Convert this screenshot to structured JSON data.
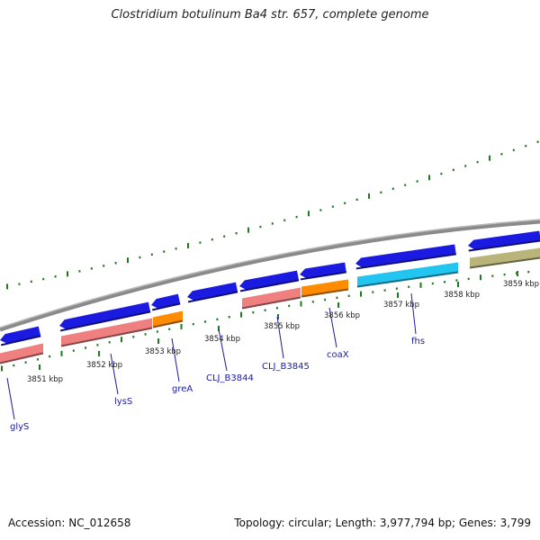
{
  "title": "Clostridium botulinum Ba4 str. 657, complete genome",
  "footer": {
    "accession": "Accession: NC_012658",
    "topology": "Topology: circular; Length: 3,977,794 bp; Genes: 3,799"
  },
  "colors": {
    "backbone": "#8a8a8a",
    "tick": "#1f7a1f",
    "cds_forward": "#1a1ae0",
    "cds_salmon": "#f08080",
    "cds_orange": "#ff8c00",
    "cds_cyan": "#22c4f0",
    "cds_olive": "#b8b47a",
    "label": "#1a1aa6"
  },
  "ticks": [
    {
      "label": "3851 kbp"
    },
    {
      "label": "3852 kbp"
    },
    {
      "label": "3853 kbp"
    },
    {
      "label": "3854 kbp"
    },
    {
      "label": "3855 kbp"
    },
    {
      "label": "3856 kbp"
    },
    {
      "label": "3857 kbp"
    },
    {
      "label": "3858 kbp"
    },
    {
      "label": "3859 kbp"
    }
  ],
  "genes": [
    {
      "label": "glyS"
    },
    {
      "label": "lysS"
    },
    {
      "label": "greA"
    },
    {
      "label": "CLJ_B3844"
    },
    {
      "label": "CLJ_B3845"
    },
    {
      "label": "coaX"
    },
    {
      "label": "fhs"
    }
  ]
}
